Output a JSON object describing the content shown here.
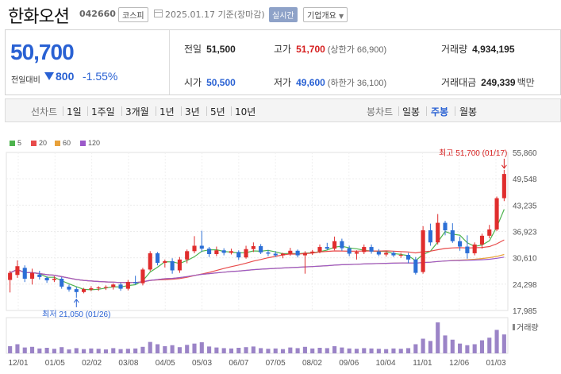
{
  "header": {
    "company": "한화오션",
    "code": "042660",
    "market": "코스피",
    "date": "2025.01.17 기준(장마감)",
    "realtime_label": "실시간",
    "overview_label": "기업개요"
  },
  "summary": {
    "price": "50,700",
    "change_label": "전일대비",
    "change_value": "800",
    "change_pct": "-1.55%",
    "prev_close_label": "전일",
    "prev_close": "51,500",
    "high_label": "고가",
    "high": "51,700",
    "upper_limit": "(상한가 66,900)",
    "volume_label": "거래량",
    "volume": "4,934,195",
    "open_label": "시가",
    "open": "50,500",
    "low_label": "저가",
    "low": "49,600",
    "lower_limit": "(하한가 36,100)",
    "amount_label": "거래대금",
    "amount": "249,339",
    "amount_unit": "백만"
  },
  "tabs": {
    "line_label": "선차트",
    "periods": [
      "1일",
      "1주일",
      "3개월",
      "1년",
      "3년",
      "5년",
      "10년"
    ],
    "candle_label": "봉차트",
    "candle_periods": [
      "일봉",
      "주봉",
      "월봉"
    ],
    "active_candle": "주봉"
  },
  "legend": [
    {
      "label": "5",
      "color": "#4db34d"
    },
    {
      "label": "20",
      "color": "#e84b4b"
    },
    {
      "label": "60",
      "color": "#e8a13a"
    },
    {
      "label": "120",
      "color": "#9b59c9"
    }
  ],
  "chart_data": {
    "type": "candlestick",
    "title": "",
    "y_ticks": [
      "55,860",
      "49,548",
      "43,235",
      "36,923",
      "30,610",
      "24,298",
      "17,985"
    ],
    "ylim": [
      17985,
      55860
    ],
    "x_ticks": [
      "12/01",
      "01/05",
      "02/02",
      "03/08",
      "04/05",
      "05/03",
      "06/07",
      "07/05",
      "08/02",
      "09/06",
      "10/04",
      "11/01",
      "12/06",
      "01/03"
    ],
    "annotation_high": "최고 51,700 (01/17)",
    "annotation_low": "최저 21,050 (01/26)",
    "volume_label": "거래량",
    "candles": [
      {
        "o": 25300,
        "h": 27500,
        "l": 22300,
        "c": 27000
      },
      {
        "o": 26500,
        "h": 30000,
        "l": 25800,
        "c": 28600
      },
      {
        "o": 28200,
        "h": 28800,
        "l": 24800,
        "c": 25600
      },
      {
        "o": 25600,
        "h": 28000,
        "l": 24200,
        "c": 27000
      },
      {
        "o": 26600,
        "h": 27500,
        "l": 25400,
        "c": 26000
      },
      {
        "o": 25800,
        "h": 26200,
        "l": 24600,
        "c": 25200
      },
      {
        "o": 25300,
        "h": 26200,
        "l": 24800,
        "c": 25600
      },
      {
        "o": 25600,
        "h": 26000,
        "l": 23200,
        "c": 23700
      },
      {
        "o": 23700,
        "h": 24200,
        "l": 22500,
        "c": 23000
      },
      {
        "o": 23100,
        "h": 23600,
        "l": 21050,
        "c": 22400
      },
      {
        "o": 22400,
        "h": 23400,
        "l": 22100,
        "c": 23100
      },
      {
        "o": 23000,
        "h": 23800,
        "l": 22600,
        "c": 23300
      },
      {
        "o": 23300,
        "h": 23800,
        "l": 22700,
        "c": 23500
      },
      {
        "o": 23400,
        "h": 24000,
        "l": 22900,
        "c": 23600
      },
      {
        "o": 23600,
        "h": 24500,
        "l": 23000,
        "c": 24200
      },
      {
        "o": 24200,
        "h": 24600,
        "l": 22700,
        "c": 23200
      },
      {
        "o": 23200,
        "h": 25300,
        "l": 22800,
        "c": 24800
      },
      {
        "o": 24800,
        "h": 26300,
        "l": 24200,
        "c": 24500
      },
      {
        "o": 24500,
        "h": 28200,
        "l": 24000,
        "c": 27800
      },
      {
        "o": 27800,
        "h": 32200,
        "l": 27400,
        "c": 31700
      },
      {
        "o": 31700,
        "h": 32000,
        "l": 28800,
        "c": 29400
      },
      {
        "o": 29400,
        "h": 30200,
        "l": 28300,
        "c": 29800
      },
      {
        "o": 29800,
        "h": 30500,
        "l": 26800,
        "c": 27600
      },
      {
        "o": 27600,
        "h": 30800,
        "l": 27000,
        "c": 30200
      },
      {
        "o": 30200,
        "h": 32600,
        "l": 29300,
        "c": 32200
      },
      {
        "o": 32200,
        "h": 35800,
        "l": 31700,
        "c": 33500
      },
      {
        "o": 33500,
        "h": 37100,
        "l": 32000,
        "c": 32800
      },
      {
        "o": 32800,
        "h": 33200,
        "l": 30800,
        "c": 31500
      },
      {
        "o": 31500,
        "h": 33300,
        "l": 31000,
        "c": 32400
      },
      {
        "o": 32400,
        "h": 32900,
        "l": 31200,
        "c": 31800
      },
      {
        "o": 31800,
        "h": 32800,
        "l": 31400,
        "c": 32200
      },
      {
        "o": 32000,
        "h": 32400,
        "l": 30100,
        "c": 30700
      },
      {
        "o": 30700,
        "h": 33500,
        "l": 30400,
        "c": 32700
      },
      {
        "o": 32700,
        "h": 34300,
        "l": 32000,
        "c": 33400
      },
      {
        "o": 33400,
        "h": 33900,
        "l": 31500,
        "c": 31900
      },
      {
        "o": 31900,
        "h": 32500,
        "l": 31000,
        "c": 31600
      },
      {
        "o": 31600,
        "h": 32200,
        "l": 30800,
        "c": 31200
      },
      {
        "o": 31200,
        "h": 31800,
        "l": 30500,
        "c": 31600
      },
      {
        "o": 31600,
        "h": 33000,
        "l": 31100,
        "c": 32300
      },
      {
        "o": 32300,
        "h": 32600,
        "l": 30700,
        "c": 31200
      },
      {
        "o": 31200,
        "h": 32200,
        "l": 26800,
        "c": 31800
      },
      {
        "o": 31800,
        "h": 32500,
        "l": 31300,
        "c": 32100
      },
      {
        "o": 32100,
        "h": 33800,
        "l": 31700,
        "c": 33200
      },
      {
        "o": 33200,
        "h": 34200,
        "l": 32500,
        "c": 32800
      },
      {
        "o": 32800,
        "h": 35700,
        "l": 32400,
        "c": 34600
      },
      {
        "o": 34600,
        "h": 35200,
        "l": 32300,
        "c": 32900
      },
      {
        "o": 32900,
        "h": 33500,
        "l": 31000,
        "c": 31600
      },
      {
        "o": 31600,
        "h": 32400,
        "l": 30200,
        "c": 32000
      },
      {
        "o": 32000,
        "h": 33800,
        "l": 31500,
        "c": 33200
      },
      {
        "o": 33200,
        "h": 33800,
        "l": 31600,
        "c": 32100
      },
      {
        "o": 32100,
        "h": 32700,
        "l": 31000,
        "c": 31400
      },
      {
        "o": 31400,
        "h": 32200,
        "l": 30900,
        "c": 31800
      },
      {
        "o": 31800,
        "h": 32200,
        "l": 30800,
        "c": 31200
      },
      {
        "o": 31200,
        "h": 31800,
        "l": 30600,
        "c": 31300
      },
      {
        "o": 31300,
        "h": 31800,
        "l": 29300,
        "c": 30200
      },
      {
        "o": 30200,
        "h": 30800,
        "l": 26600,
        "c": 27000
      },
      {
        "o": 27200,
        "h": 38200,
        "l": 26800,
        "c": 37200
      },
      {
        "o": 37200,
        "h": 38800,
        "l": 33500,
        "c": 34300
      },
      {
        "o": 34300,
        "h": 41100,
        "l": 33800,
        "c": 39000
      },
      {
        "o": 39000,
        "h": 39500,
        "l": 36000,
        "c": 37200
      },
      {
        "o": 37200,
        "h": 38900,
        "l": 34200,
        "c": 34600
      },
      {
        "o": 34600,
        "h": 35700,
        "l": 32300,
        "c": 33300
      },
      {
        "o": 33300,
        "h": 36000,
        "l": 30400,
        "c": 31700
      },
      {
        "o": 31700,
        "h": 34300,
        "l": 31200,
        "c": 33800
      },
      {
        "o": 33800,
        "h": 36400,
        "l": 32800,
        "c": 35900
      },
      {
        "o": 35900,
        "h": 38500,
        "l": 35300,
        "c": 37400
      },
      {
        "o": 37400,
        "h": 45300,
        "l": 37000,
        "c": 44900
      },
      {
        "o": 44900,
        "h": 51700,
        "l": 44200,
        "c": 50700
      }
    ],
    "volumes": [
      22,
      28,
      18,
      20,
      15,
      17,
      14,
      19,
      12,
      16,
      13,
      15,
      14,
      12,
      16,
      13,
      14,
      15,
      20,
      35,
      28,
      22,
      25,
      19,
      26,
      30,
      34,
      21,
      18,
      16,
      15,
      17,
      19,
      21,
      16,
      14,
      15,
      13,
      18,
      16,
      20,
      15,
      17,
      16,
      22,
      18,
      15,
      14,
      16,
      15,
      14,
      13,
      15,
      14,
      16,
      28,
      45,
      38,
      95,
      55,
      42,
      30,
      25,
      28,
      40,
      48,
      72,
      58
    ]
  }
}
